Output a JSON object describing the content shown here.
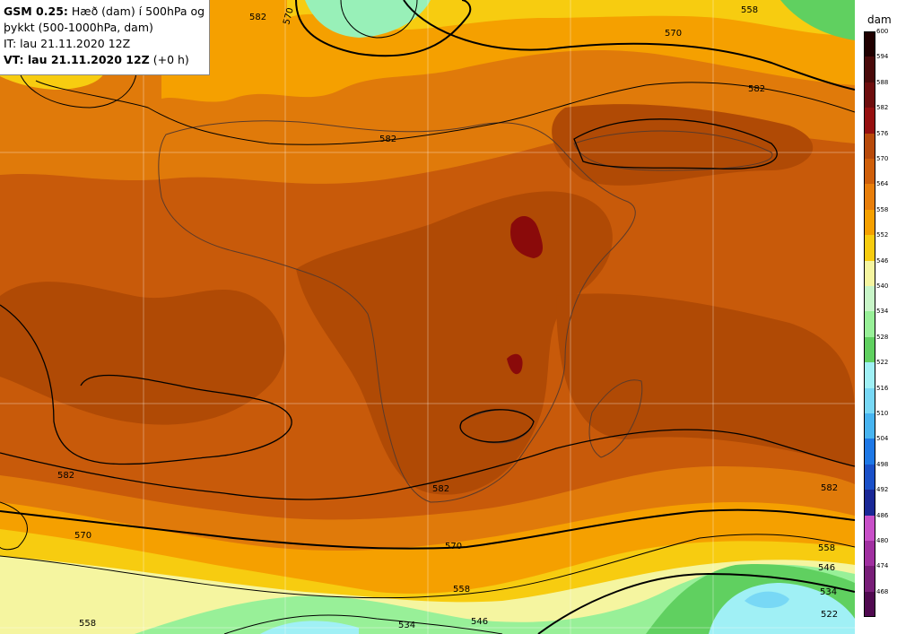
{
  "header": {
    "model": "GSM 0.25:",
    "desc_line1": "Hæð (dam) í 500hPa og",
    "desc_line2": "þykkt (500-1000hPa, dam)",
    "it_line": "IT: lau 21.11.2020 12Z",
    "vt_label": "VT: lau 21.11.2020 12Z",
    "vt_suffix": "(+0 h)"
  },
  "colorbar": {
    "unit": "dam",
    "levels": [
      "600",
      "594",
      "588",
      "582",
      "576",
      "570",
      "564",
      "558",
      "552",
      "546",
      "540",
      "534",
      "528",
      "522",
      "516",
      "510",
      "504",
      "498",
      "492",
      "486",
      "480",
      "474",
      "468"
    ],
    "colors": [
      "#200000",
      "#4a0a0a",
      "#6e0e0e",
      "#961010",
      "#b84a0a",
      "#cf5f0a",
      "#e87e0a",
      "#f5a000",
      "#f7cc10",
      "#f5f5a0",
      "#c8f5c8",
      "#98f098",
      "#60d060",
      "#a0f0f5",
      "#78d8f5",
      "#48b4f0",
      "#1e78e6",
      "#1a50c8",
      "#1a2896",
      "#c850c8",
      "#a030a0",
      "#781e78",
      "#500a50"
    ]
  },
  "contour_labels": [
    {
      "text": "582"
    },
    {
      "text": "570"
    },
    {
      "text": "558"
    },
    {
      "text": "570"
    },
    {
      "text": "582"
    },
    {
      "text": "582"
    },
    {
      "text": "582"
    },
    {
      "text": "582"
    },
    {
      "text": "582"
    },
    {
      "text": "570"
    },
    {
      "text": "570"
    },
    {
      "text": "558"
    },
    {
      "text": "546"
    },
    {
      "text": "546"
    },
    {
      "text": "534"
    },
    {
      "text": "558"
    },
    {
      "text": "558"
    },
    {
      "text": "534"
    },
    {
      "text": "522"
    }
  ]
}
